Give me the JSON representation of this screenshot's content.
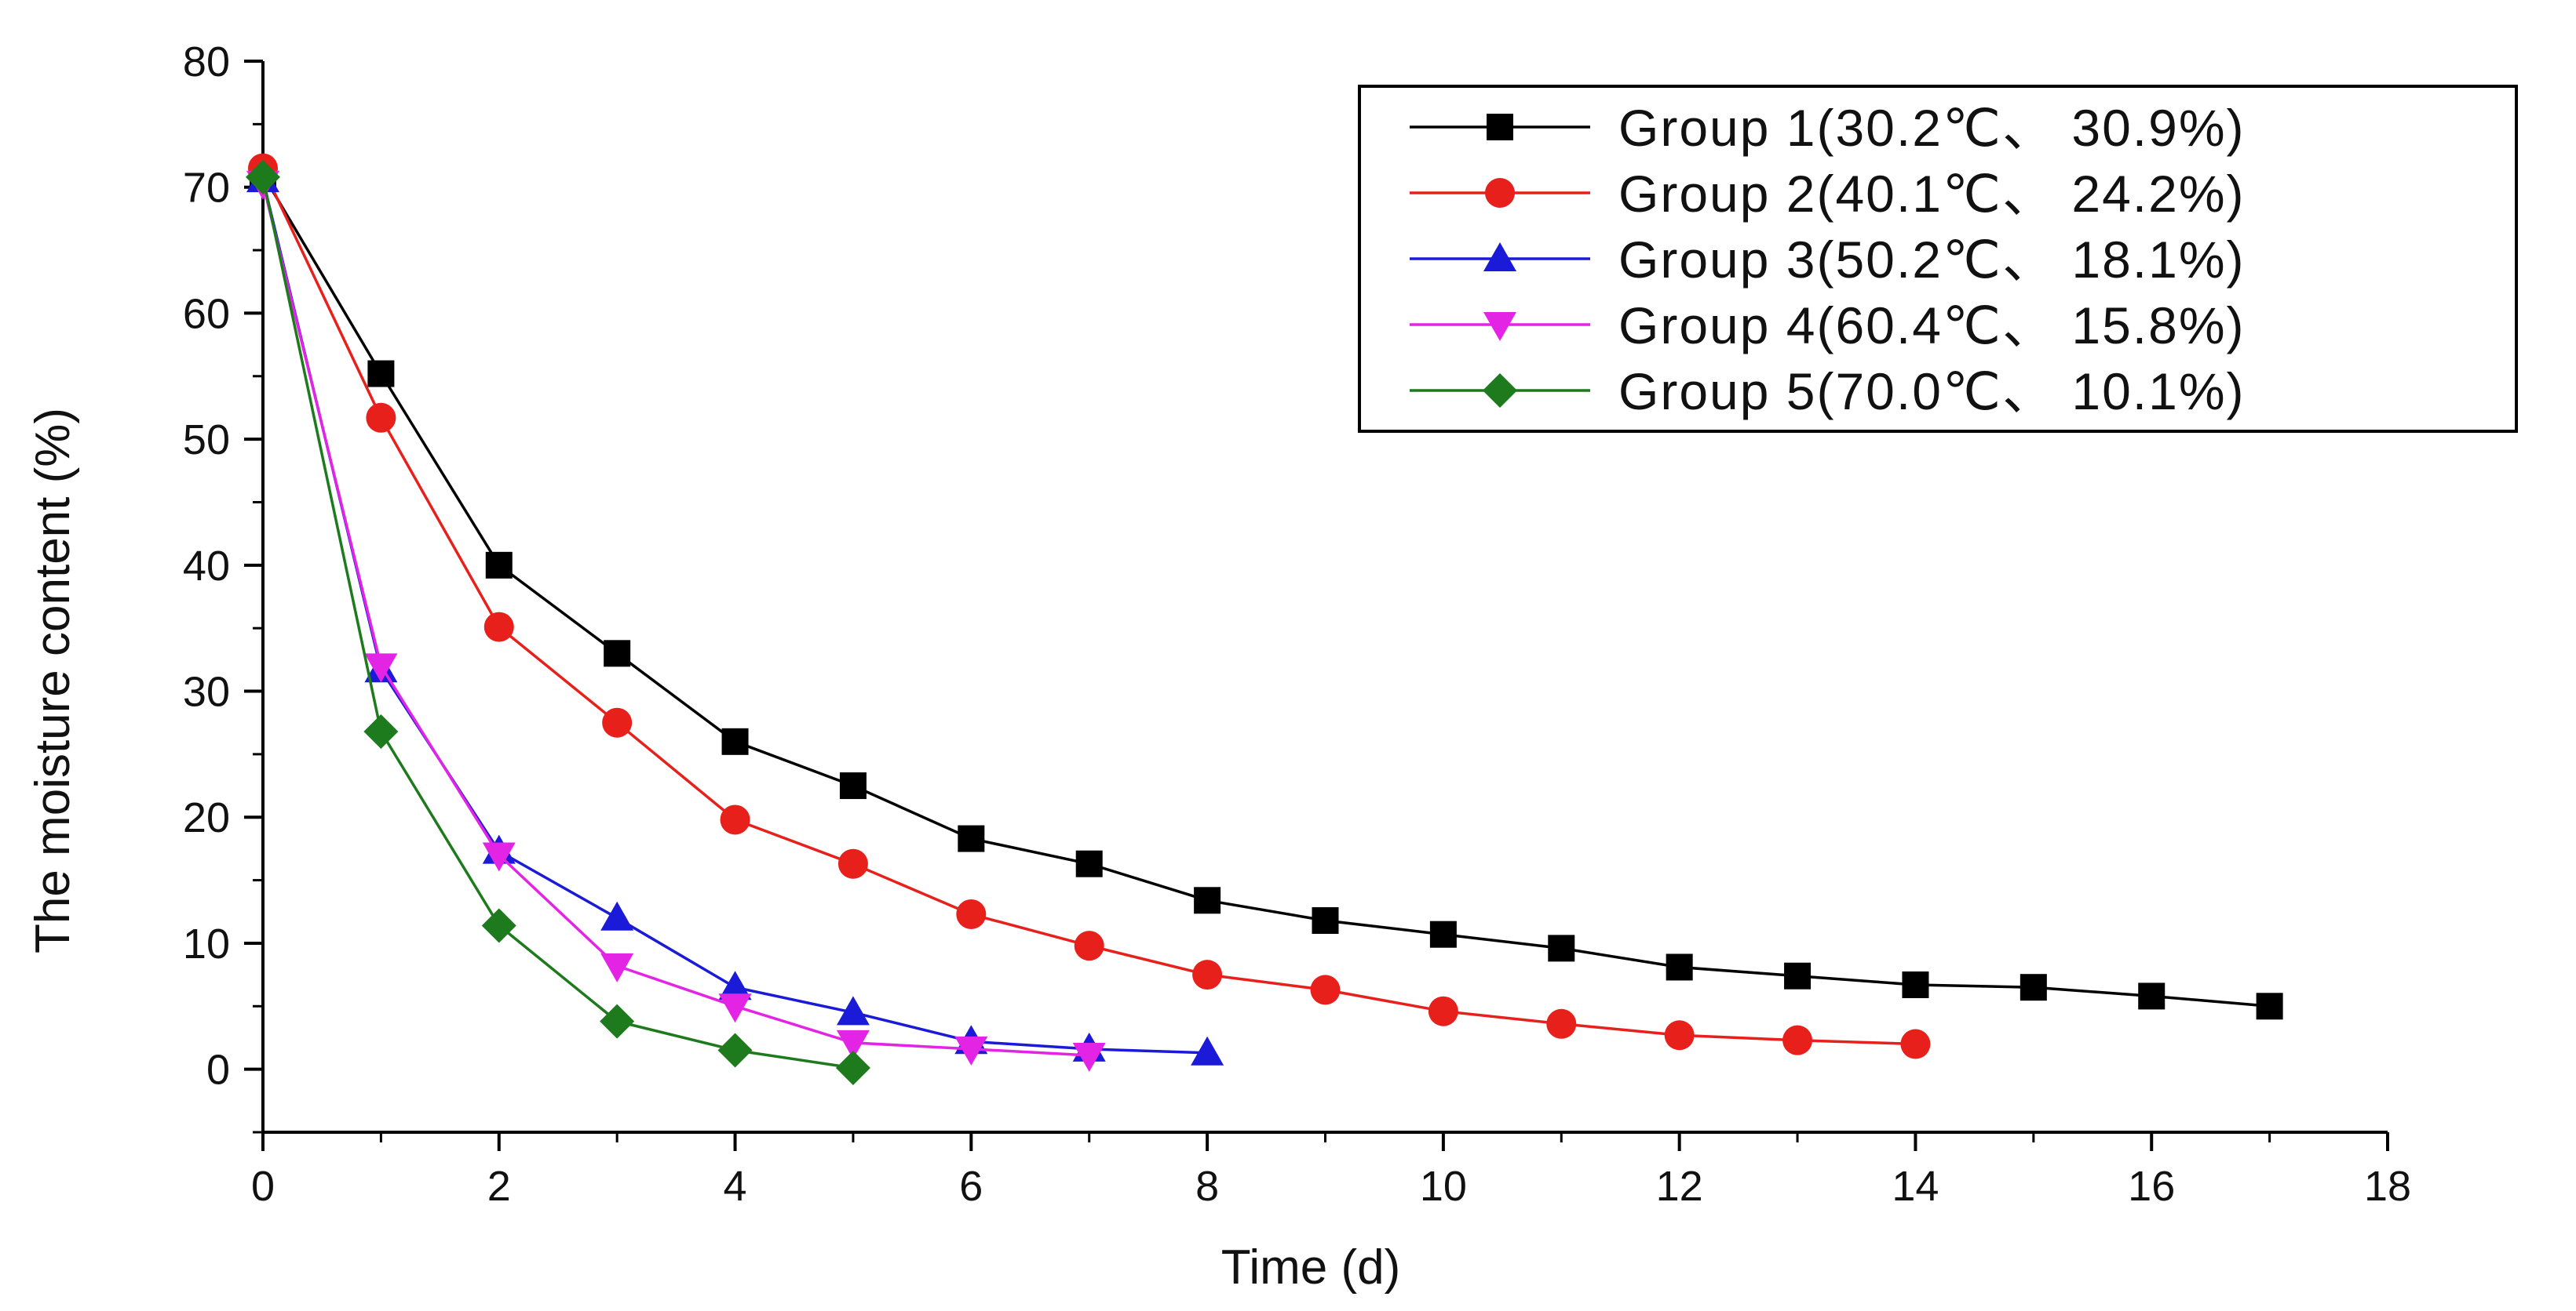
{
  "chart_data": {
    "type": "line",
    "title": "",
    "xlabel": "Time  (d)",
    "ylabel": "The moisture content (%)",
    "xlim": [
      0,
      18
    ],
    "ylim": [
      -5,
      80
    ],
    "xticks": [
      0,
      2,
      4,
      6,
      8,
      10,
      12,
      14,
      16,
      18
    ],
    "yticks": [
      0,
      10,
      20,
      30,
      40,
      50,
      60,
      70,
      80
    ],
    "grid": false,
    "legend_position": "top-right",
    "series": [
      {
        "name": "Group 1(30.2℃、 30.9%)",
        "color": "#000000",
        "marker": "square",
        "x": [
          0,
          1,
          2,
          3,
          4,
          5,
          6,
          7,
          8,
          9,
          10,
          11,
          12,
          13,
          14,
          15,
          16,
          17
        ],
        "values": [
          71,
          55.2,
          40,
          33,
          26,
          22.5,
          18.3,
          16.3,
          13.4,
          11.8,
          10.7,
          9.6,
          8.1,
          7.4,
          6.7,
          6.5,
          5.8,
          5
        ]
      },
      {
        "name": "Group 2(40.1℃、 24.2%)",
        "color": "#e8201c",
        "marker": "circle",
        "x": [
          0,
          1,
          2,
          3,
          4,
          5,
          6,
          7,
          8,
          9,
          10,
          11,
          12,
          13,
          14
        ],
        "values": [
          71.5,
          51.7,
          35.1,
          27.5,
          19.8,
          16.3,
          12.3,
          9.8,
          7.5,
          6.3,
          4.6,
          3.6,
          2.7,
          2.3,
          2
        ]
      },
      {
        "name": "Group 3(50.2℃、 18.1%)",
        "color": "#1a1ad8",
        "marker": "triangle-up",
        "x": [
          0,
          1,
          2,
          3,
          4,
          5,
          6,
          7,
          8
        ],
        "values": [
          70.6,
          31.7,
          17.3,
          12,
          6.5,
          4.5,
          2.2,
          1.6,
          1.3
        ]
      },
      {
        "name": "Group 4(60.4℃、 15.8%)",
        "color": "#e424e4",
        "marker": "triangle-down",
        "x": [
          0,
          1,
          2,
          3,
          4,
          5,
          6,
          7
        ],
        "values": [
          70.3,
          32,
          17,
          8.2,
          5,
          2.1,
          1.6,
          1.1
        ]
      },
      {
        "name": "Group 5(70.0℃、 10.1%)",
        "color": "#1d7a1d",
        "marker": "diamond",
        "x": [
          0,
          1,
          2,
          3,
          4,
          5
        ],
        "values": [
          70.8,
          26.8,
          11.4,
          3.8,
          1.5,
          0.1
        ]
      }
    ]
  }
}
